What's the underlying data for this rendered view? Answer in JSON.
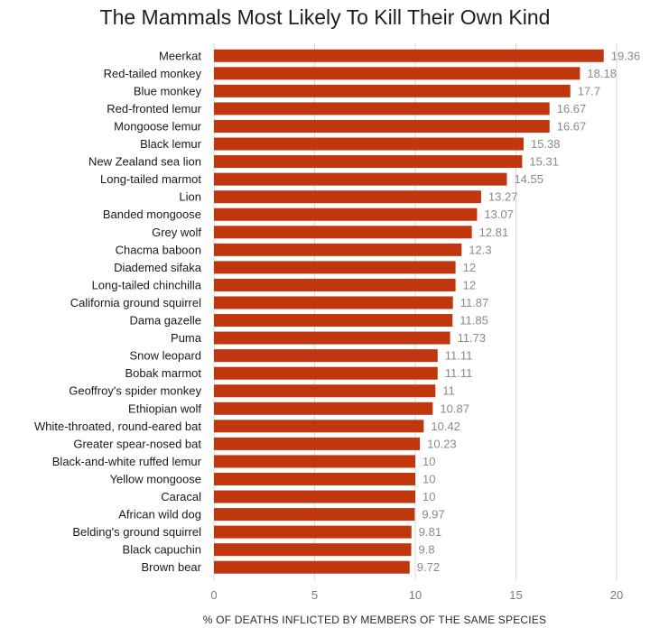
{
  "chart_data": {
    "type": "bar",
    "orientation": "horizontal",
    "title": "The Mammals Most Likely To Kill Their Own Kind",
    "xlabel": "% OF DEATHS INFLICTED BY MEMBERS OF THE SAME SPECIES",
    "ylabel": "",
    "xlim": [
      0,
      20
    ],
    "xticks": [
      "0",
      "5",
      "10",
      "15",
      "20"
    ],
    "grid": "vertical",
    "bar_color": "#c0360d",
    "value_label_color": "#8a8a8a",
    "categories": [
      "Meerkat",
      "Red-tailed monkey",
      "Blue monkey",
      "Red-fronted lemur",
      "Mongoose lemur",
      "Black lemur",
      "New Zealand sea lion",
      "Long-tailed marmot",
      "Lion",
      "Banded mongoose",
      "Grey wolf",
      "Chacma baboon",
      "Diademed sifaka",
      "Long-tailed chinchilla",
      "California ground squirrel",
      "Dama gazelle",
      "Puma",
      "Snow leopard",
      "Bobak marmot",
      "Geoffroy's spider monkey",
      "Ethiopian wolf",
      "White-throated, round-eared bat",
      "Greater spear-nosed bat",
      "Black-and-white ruffed lemur",
      "Yellow mongoose",
      "Caracal",
      "African wild dog",
      "Belding's ground squirrel",
      "Black capuchin",
      "Brown bear"
    ],
    "values": [
      19.36,
      18.18,
      17.7,
      16.67,
      16.67,
      15.38,
      15.31,
      14.55,
      13.27,
      13.07,
      12.81,
      12.3,
      12,
      12,
      11.87,
      11.85,
      11.73,
      11.11,
      11.11,
      11,
      10.87,
      10.42,
      10.23,
      10,
      10,
      10,
      9.97,
      9.81,
      9.8,
      9.72
    ],
    "value_labels": [
      "19.36",
      "18.18",
      "17.7",
      "16.67",
      "16.67",
      "15.38",
      "15.31",
      "14.55",
      "13.27",
      "13.07",
      "12.81",
      "12.3",
      "12",
      "12",
      "11.87",
      "11.85",
      "11.73",
      "11.11",
      "11.11",
      "11",
      "10.87",
      "10.42",
      "10.23",
      "10",
      "10",
      "10",
      "9.97",
      "9.81",
      "9.8",
      "9.72"
    ]
  }
}
